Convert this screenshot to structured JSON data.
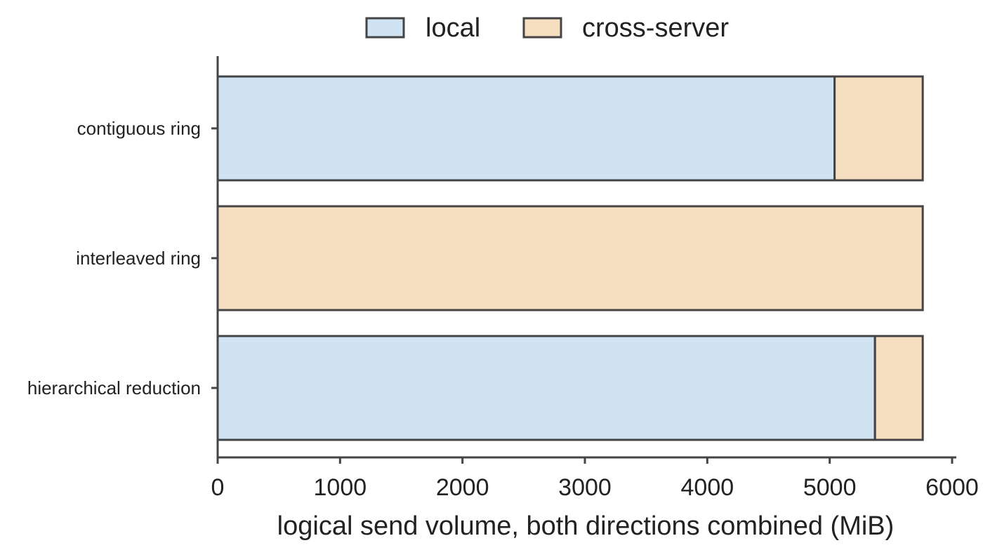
{
  "chart_data": {
    "type": "bar",
    "orientation": "horizontal",
    "stacked": true,
    "categories": [
      "contiguous ring",
      "interleaved ring",
      "hierarchical reduction"
    ],
    "series": [
      {
        "name": "local",
        "values": [
          5040,
          0,
          5370
        ],
        "color": "#cfe3f3"
      },
      {
        "name": "cross-server",
        "values": [
          720,
          5760,
          390
        ],
        "color": "#f6dec0"
      }
    ],
    "xlabel": "logical send volume, both directions combined (MiB)",
    "ylabel": "",
    "xlim": [
      0,
      6000
    ],
    "xticks": [
      "0",
      "1000",
      "2000",
      "3000",
      "4000",
      "5000",
      "6000"
    ],
    "grid": false,
    "legend_position": "top-center",
    "edge_color": "#444444"
  }
}
